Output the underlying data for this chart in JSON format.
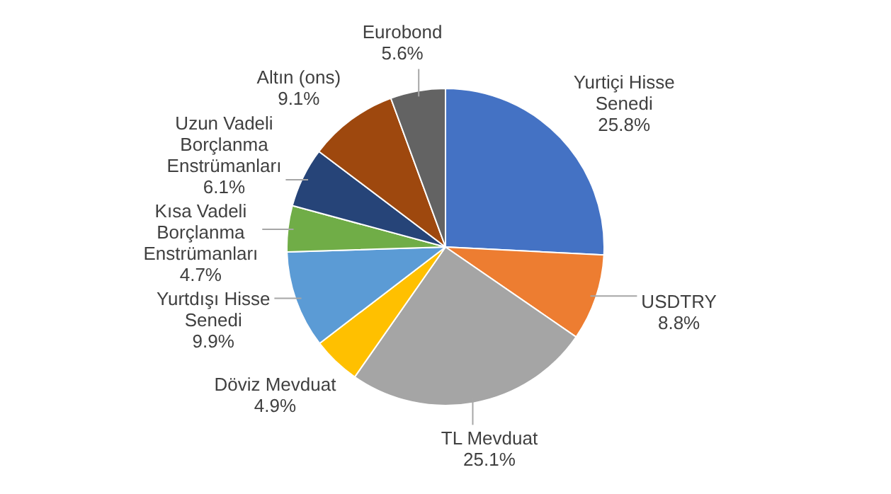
{
  "chart_data": {
    "type": "pie",
    "categories": [
      "Yurtiçi Hisse Senedi",
      "USDTRY",
      "TL Mevduat",
      "Döviz Mevduat",
      "Yurtdışı Hisse Senedi",
      "Kısa Vadeli Borçlanma Enstrümanları",
      "Uzun Vadeli Borçlanma Enstrümanları",
      "Altın (ons)",
      "Eurobond"
    ],
    "values": [
      25.8,
      8.8,
      25.1,
      4.9,
      9.9,
      4.7,
      6.1,
      9.1,
      5.6
    ],
    "colors": [
      "#4472c4",
      "#ed7d31",
      "#a5a5a5",
      "#ffc000",
      "#5b9bd5",
      "#70ad47",
      "#264478",
      "#9e480e",
      "#636363"
    ],
    "value_labels": [
      "25.8%",
      "8.8%",
      "25.1%",
      "4.9%",
      "9.9%",
      "4.7%",
      "6.1%",
      "9.1%",
      "5.6%"
    ]
  }
}
